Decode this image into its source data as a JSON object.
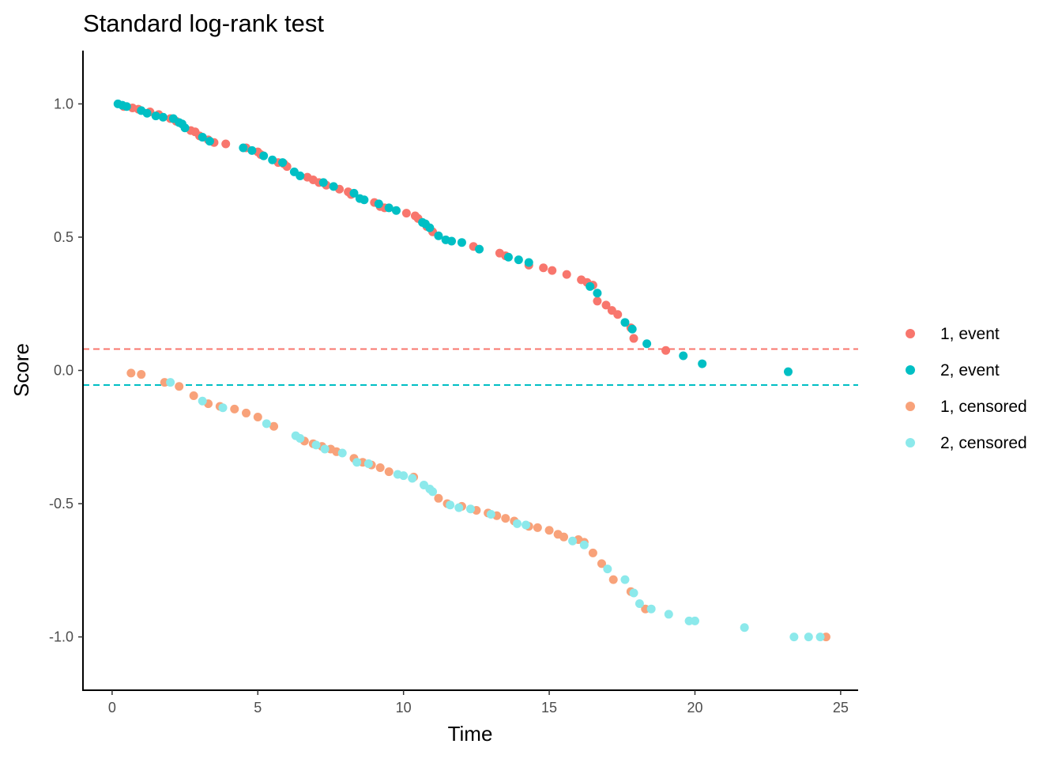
{
  "chart_data": {
    "type": "scatter",
    "title": "Standard log-rank test",
    "xlabel": "Time",
    "ylabel": "Score",
    "xlim": [
      -1,
      25.6
    ],
    "ylim": [
      -1.2,
      1.2
    ],
    "xticks": [
      0,
      5,
      10,
      15,
      20,
      25
    ],
    "xtick_labels": [
      "0",
      "5",
      "10",
      "15",
      "20",
      "25"
    ],
    "yticks": [
      1.0,
      0.5,
      0.0,
      -0.5,
      -1.0
    ],
    "ytick_labels": [
      "1.0",
      "0.5",
      "0.0",
      "-0.5",
      "-1.0"
    ],
    "grid": false,
    "legend_position": "right",
    "reference_lines": [
      {
        "series": "1, event",
        "y": 0.08,
        "style": "dashed",
        "color": "#F8766D"
      },
      {
        "series": "2, event",
        "y": -0.055,
        "style": "dashed",
        "color": "#00BFC4"
      }
    ],
    "series": [
      {
        "name": "1, event",
        "color": "#F8766D",
        "points": [
          [
            0.4,
            0.99
          ],
          [
            0.7,
            0.985
          ],
          [
            0.9,
            0.98
          ],
          [
            1.3,
            0.97
          ],
          [
            1.6,
            0.96
          ],
          [
            2.0,
            0.945
          ],
          [
            2.2,
            0.935
          ],
          [
            2.7,
            0.9
          ],
          [
            2.85,
            0.895
          ],
          [
            3.0,
            0.88
          ],
          [
            3.3,
            0.865
          ],
          [
            3.5,
            0.855
          ],
          [
            3.9,
            0.85
          ],
          [
            4.6,
            0.835
          ],
          [
            5.0,
            0.82
          ],
          [
            5.1,
            0.81
          ],
          [
            5.7,
            0.78
          ],
          [
            5.9,
            0.775
          ],
          [
            6.0,
            0.765
          ],
          [
            6.7,
            0.725
          ],
          [
            6.9,
            0.715
          ],
          [
            7.1,
            0.705
          ],
          [
            7.35,
            0.695
          ],
          [
            7.8,
            0.68
          ],
          [
            8.1,
            0.67
          ],
          [
            8.2,
            0.66
          ],
          [
            9.0,
            0.63
          ],
          [
            9.2,
            0.615
          ],
          [
            9.35,
            0.61
          ],
          [
            10.1,
            0.59
          ],
          [
            10.4,
            0.58
          ],
          [
            10.5,
            0.57
          ],
          [
            10.8,
            0.54
          ],
          [
            11.0,
            0.52
          ],
          [
            12.4,
            0.465
          ],
          [
            13.3,
            0.44
          ],
          [
            13.5,
            0.43
          ],
          [
            14.3,
            0.395
          ],
          [
            14.8,
            0.385
          ],
          [
            15.1,
            0.375
          ],
          [
            15.6,
            0.36
          ],
          [
            16.1,
            0.34
          ],
          [
            16.3,
            0.33
          ],
          [
            16.5,
            0.32
          ],
          [
            16.65,
            0.26
          ],
          [
            16.95,
            0.245
          ],
          [
            17.15,
            0.225
          ],
          [
            17.35,
            0.21
          ],
          [
            17.8,
            0.16
          ],
          [
            17.9,
            0.12
          ],
          [
            19.0,
            0.075
          ]
        ]
      },
      {
        "name": "2, event",
        "color": "#00BFC4",
        "points": [
          [
            0.2,
            1.0
          ],
          [
            0.35,
            0.995
          ],
          [
            0.5,
            0.99
          ],
          [
            1.0,
            0.975
          ],
          [
            1.2,
            0.965
          ],
          [
            1.5,
            0.955
          ],
          [
            1.75,
            0.95
          ],
          [
            2.1,
            0.945
          ],
          [
            2.3,
            0.93
          ],
          [
            2.4,
            0.925
          ],
          [
            2.5,
            0.91
          ],
          [
            3.1,
            0.875
          ],
          [
            3.35,
            0.86
          ],
          [
            4.5,
            0.835
          ],
          [
            4.8,
            0.825
          ],
          [
            5.2,
            0.805
          ],
          [
            5.5,
            0.79
          ],
          [
            5.85,
            0.78
          ],
          [
            6.25,
            0.745
          ],
          [
            6.45,
            0.73
          ],
          [
            7.25,
            0.705
          ],
          [
            7.6,
            0.69
          ],
          [
            8.3,
            0.665
          ],
          [
            8.5,
            0.645
          ],
          [
            8.65,
            0.64
          ],
          [
            9.15,
            0.625
          ],
          [
            9.5,
            0.61
          ],
          [
            9.75,
            0.6
          ],
          [
            10.65,
            0.555
          ],
          [
            10.75,
            0.55
          ],
          [
            10.9,
            0.535
          ],
          [
            11.2,
            0.505
          ],
          [
            11.45,
            0.49
          ],
          [
            11.65,
            0.485
          ],
          [
            12.0,
            0.48
          ],
          [
            12.6,
            0.455
          ],
          [
            13.6,
            0.425
          ],
          [
            13.95,
            0.415
          ],
          [
            14.3,
            0.405
          ],
          [
            16.4,
            0.315
          ],
          [
            16.65,
            0.29
          ],
          [
            17.6,
            0.18
          ],
          [
            17.85,
            0.155
          ],
          [
            18.35,
            0.1
          ],
          [
            19.6,
            0.055
          ],
          [
            20.25,
            0.025
          ],
          [
            23.2,
            -0.005
          ]
        ]
      },
      {
        "name": "1, censored",
        "color": "#F8A27A",
        "points": [
          [
            0.65,
            -0.01
          ],
          [
            1.0,
            -0.015
          ],
          [
            1.8,
            -0.045
          ],
          [
            2.3,
            -0.06
          ],
          [
            2.8,
            -0.095
          ],
          [
            3.3,
            -0.125
          ],
          [
            3.7,
            -0.135
          ],
          [
            4.2,
            -0.145
          ],
          [
            4.6,
            -0.16
          ],
          [
            5.0,
            -0.175
          ],
          [
            5.55,
            -0.21
          ],
          [
            6.6,
            -0.265
          ],
          [
            6.9,
            -0.275
          ],
          [
            7.2,
            -0.285
          ],
          [
            7.5,
            -0.295
          ],
          [
            7.7,
            -0.305
          ],
          [
            8.3,
            -0.33
          ],
          [
            8.6,
            -0.345
          ],
          [
            8.9,
            -0.355
          ],
          [
            9.2,
            -0.365
          ],
          [
            9.5,
            -0.38
          ],
          [
            10.35,
            -0.4
          ],
          [
            11.2,
            -0.48
          ],
          [
            11.5,
            -0.5
          ],
          [
            12.0,
            -0.51
          ],
          [
            12.5,
            -0.525
          ],
          [
            12.9,
            -0.535
          ],
          [
            13.2,
            -0.545
          ],
          [
            13.5,
            -0.555
          ],
          [
            13.8,
            -0.565
          ],
          [
            14.3,
            -0.585
          ],
          [
            14.6,
            -0.59
          ],
          [
            15.0,
            -0.6
          ],
          [
            15.3,
            -0.615
          ],
          [
            15.5,
            -0.625
          ],
          [
            16.0,
            -0.635
          ],
          [
            16.2,
            -0.645
          ],
          [
            16.5,
            -0.685
          ],
          [
            16.8,
            -0.725
          ],
          [
            17.2,
            -0.785
          ],
          [
            17.8,
            -0.83
          ],
          [
            18.3,
            -0.895
          ],
          [
            24.5,
            -1.0
          ]
        ]
      },
      {
        "name": "2, censored",
        "color": "#8CE9EB",
        "points": [
          [
            2.0,
            -0.045
          ],
          [
            3.1,
            -0.115
          ],
          [
            3.8,
            -0.14
          ],
          [
            5.3,
            -0.2
          ],
          [
            6.3,
            -0.245
          ],
          [
            6.45,
            -0.255
          ],
          [
            7.0,
            -0.28
          ],
          [
            7.3,
            -0.295
          ],
          [
            7.9,
            -0.31
          ],
          [
            8.4,
            -0.345
          ],
          [
            8.8,
            -0.35
          ],
          [
            9.8,
            -0.39
          ],
          [
            10.0,
            -0.395
          ],
          [
            10.3,
            -0.405
          ],
          [
            10.7,
            -0.43
          ],
          [
            10.9,
            -0.445
          ],
          [
            11.0,
            -0.455
          ],
          [
            11.6,
            -0.505
          ],
          [
            11.9,
            -0.515
          ],
          [
            12.3,
            -0.52
          ],
          [
            13.0,
            -0.54
          ],
          [
            13.9,
            -0.575
          ],
          [
            14.2,
            -0.58
          ],
          [
            15.8,
            -0.64
          ],
          [
            16.2,
            -0.655
          ],
          [
            17.0,
            -0.745
          ],
          [
            17.6,
            -0.785
          ],
          [
            17.9,
            -0.835
          ],
          [
            18.1,
            -0.875
          ],
          [
            18.5,
            -0.895
          ],
          [
            19.1,
            -0.915
          ],
          [
            19.8,
            -0.94
          ],
          [
            20.0,
            -0.94
          ],
          [
            21.7,
            -0.965
          ],
          [
            23.4,
            -1.0
          ],
          [
            23.9,
            -1.0
          ],
          [
            24.3,
            -1.0
          ]
        ]
      }
    ]
  }
}
